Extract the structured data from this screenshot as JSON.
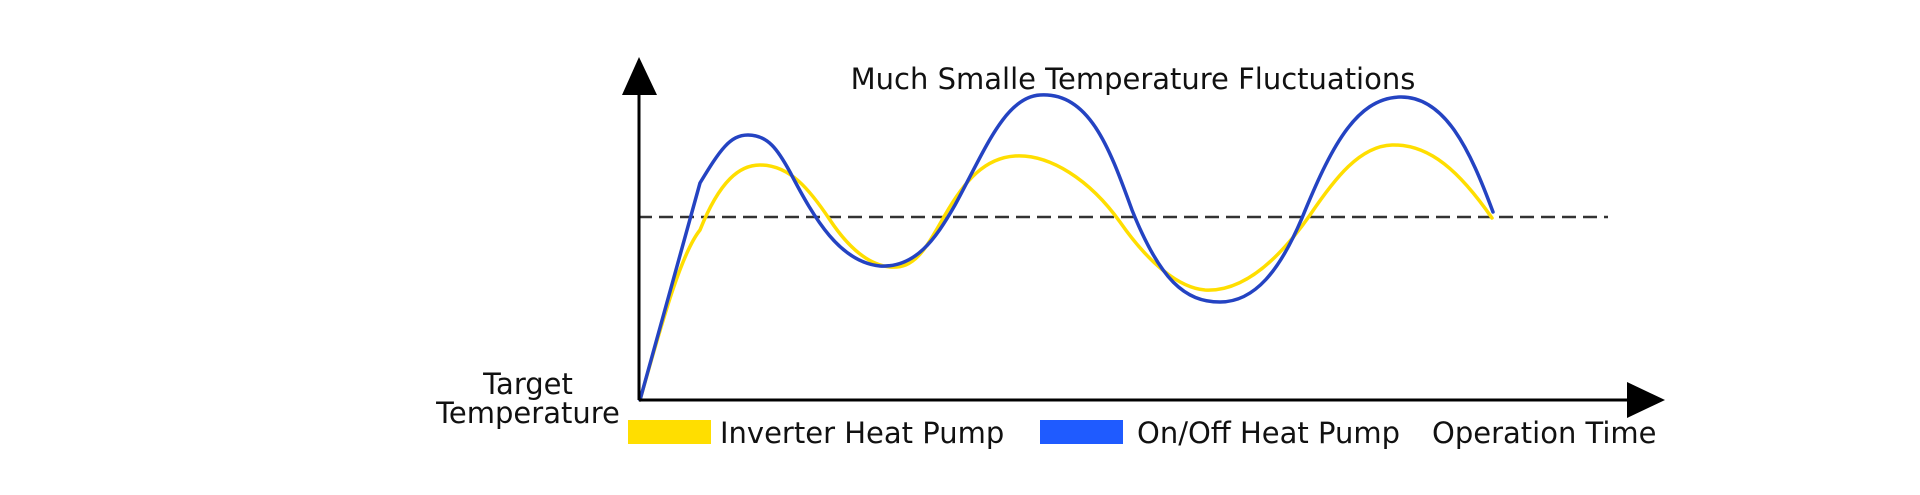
{
  "chart_data": {
    "type": "line",
    "title": "Much Smalle Temperature Fluctuations",
    "ylabel_lines": [
      "Target",
      "Temperature"
    ],
    "xlabel": "Operation Time",
    "target_line": {
      "style": "dashed",
      "color": "#333333"
    },
    "legend": [
      {
        "label": "Inverter Heat Pump",
        "color": "#FFDE00"
      },
      {
        "label": "On/Off Heat Pump",
        "color": "#1F5BFF"
      }
    ],
    "series": [
      {
        "name": "Inverter Heat Pump",
        "color": "#FFDE00",
        "shape": "smooth curve starting at origin, rising to oscillate around target line with smaller amplitude"
      },
      {
        "name": "On/Off Heat Pump",
        "color": "#2443C2",
        "shape": "curve starting at origin, rising to oscillate around target line with larger amplitude"
      }
    ]
  }
}
